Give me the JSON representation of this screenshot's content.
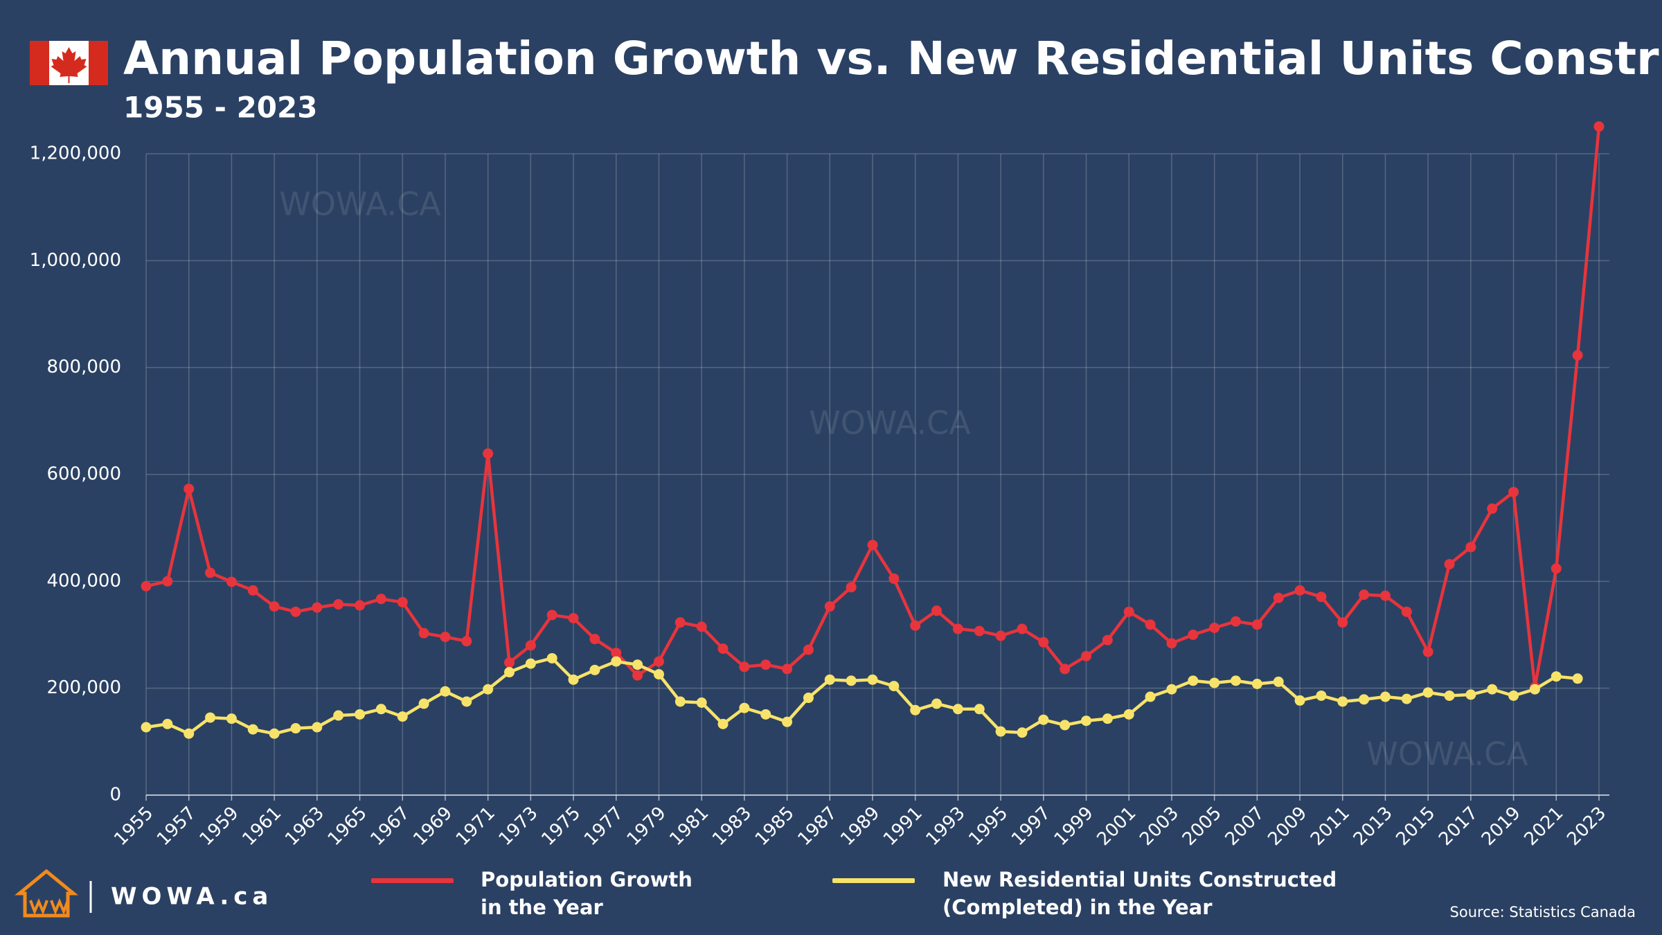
{
  "chart_data": {
    "type": "line",
    "title": "Annual Population Growth vs. New Residential Units Constructed",
    "subtitle": "1955 - 2023",
    "x": [
      1955,
      1956,
      1957,
      1958,
      1959,
      1960,
      1961,
      1962,
      1963,
      1964,
      1965,
      1966,
      1967,
      1968,
      1969,
      1970,
      1971,
      1972,
      1973,
      1974,
      1975,
      1976,
      1977,
      1978,
      1979,
      1980,
      1981,
      1982,
      1983,
      1984,
      1985,
      1986,
      1987,
      1988,
      1989,
      1990,
      1991,
      1992,
      1993,
      1994,
      1995,
      1996,
      1997,
      1998,
      1999,
      2000,
      2001,
      2002,
      2003,
      2004,
      2005,
      2006,
      2007,
      2008,
      2009,
      2010,
      2011,
      2012,
      2013,
      2014,
      2015,
      2016,
      2017,
      2018,
      2019,
      2020,
      2021,
      2022,
      2023
    ],
    "series": [
      {
        "name": "Population Growth in the Year",
        "color": "#e8343c",
        "values": [
          391000,
          400000,
          573000,
          416000,
          399000,
          383000,
          353000,
          343000,
          351000,
          357000,
          355000,
          367000,
          361000,
          303000,
          296000,
          288000,
          639000,
          248000,
          280000,
          337000,
          331000,
          292000,
          266000,
          224000,
          250000,
          323000,
          315000,
          274000,
          240000,
          244000,
          236000,
          272000,
          353000,
          389000,
          468000,
          405000,
          317000,
          345000,
          311000,
          307000,
          298000,
          311000,
          286000,
          236000,
          260000,
          290000,
          343000,
          319000,
          284000,
          300000,
          313000,
          325000,
          319000,
          369000,
          383000,
          371000,
          323000,
          375000,
          373000,
          343000,
          268000,
          432000,
          464000,
          536000,
          567000,
          202000,
          424000,
          823000,
          1251000
        ]
      },
      {
        "name": "New Residential Units Constructed (Completed) in the Year",
        "color": "#f7e36a",
        "values": [
          127000,
          133000,
          115000,
          145000,
          143000,
          123000,
          115000,
          125000,
          127000,
          149000,
          151000,
          161000,
          147000,
          171000,
          194000,
          175000,
          198000,
          230000,
          246000,
          256000,
          216000,
          234000,
          250000,
          244000,
          226000,
          175000,
          173000,
          133000,
          163000,
          151000,
          137000,
          182000,
          216000,
          214000,
          216000,
          204000,
          159000,
          171000,
          161000,
          161000,
          119000,
          117000,
          141000,
          131000,
          139000,
          143000,
          151000,
          184000,
          198000,
          214000,
          210000,
          214000,
          208000,
          212000,
          177000,
          186000,
          175000,
          179000,
          184000,
          180000,
          192000,
          186000,
          188000,
          198000,
          186000,
          198000,
          222000,
          218000,
          null
        ]
      }
    ],
    "xlim": [
      1955,
      2023
    ],
    "xticks": [
      1955,
      1957,
      1959,
      1961,
      1963,
      1965,
      1967,
      1969,
      1971,
      1973,
      1975,
      1977,
      1979,
      1981,
      1983,
      1985,
      1987,
      1989,
      1991,
      1993,
      1995,
      1997,
      1999,
      2001,
      2003,
      2005,
      2007,
      2009,
      2011,
      2013,
      2015,
      2017,
      2019,
      2021,
      2023
    ],
    "ylim": [
      0,
      1200000
    ],
    "yticks": [
      0,
      {
        "value": 200000,
        "label": "200,000"
      },
      {
        "value": 400000,
        "label": "400,000"
      },
      {
        "value": 600000,
        "label": "600,000"
      },
      {
        "value": 800000,
        "label": "800,000"
      },
      {
        "value": 1000000,
        "label": "1,000,000"
      },
      {
        "value": 1200000,
        "label": "1,200,000"
      }
    ],
    "grid": true,
    "legend": "bottom",
    "watermarks": [
      "WOWA.CA",
      "WOWA.CA",
      "WOWA.CA"
    ],
    "logo": "WOWA.ca",
    "source": "Source: Statistics Canada"
  }
}
